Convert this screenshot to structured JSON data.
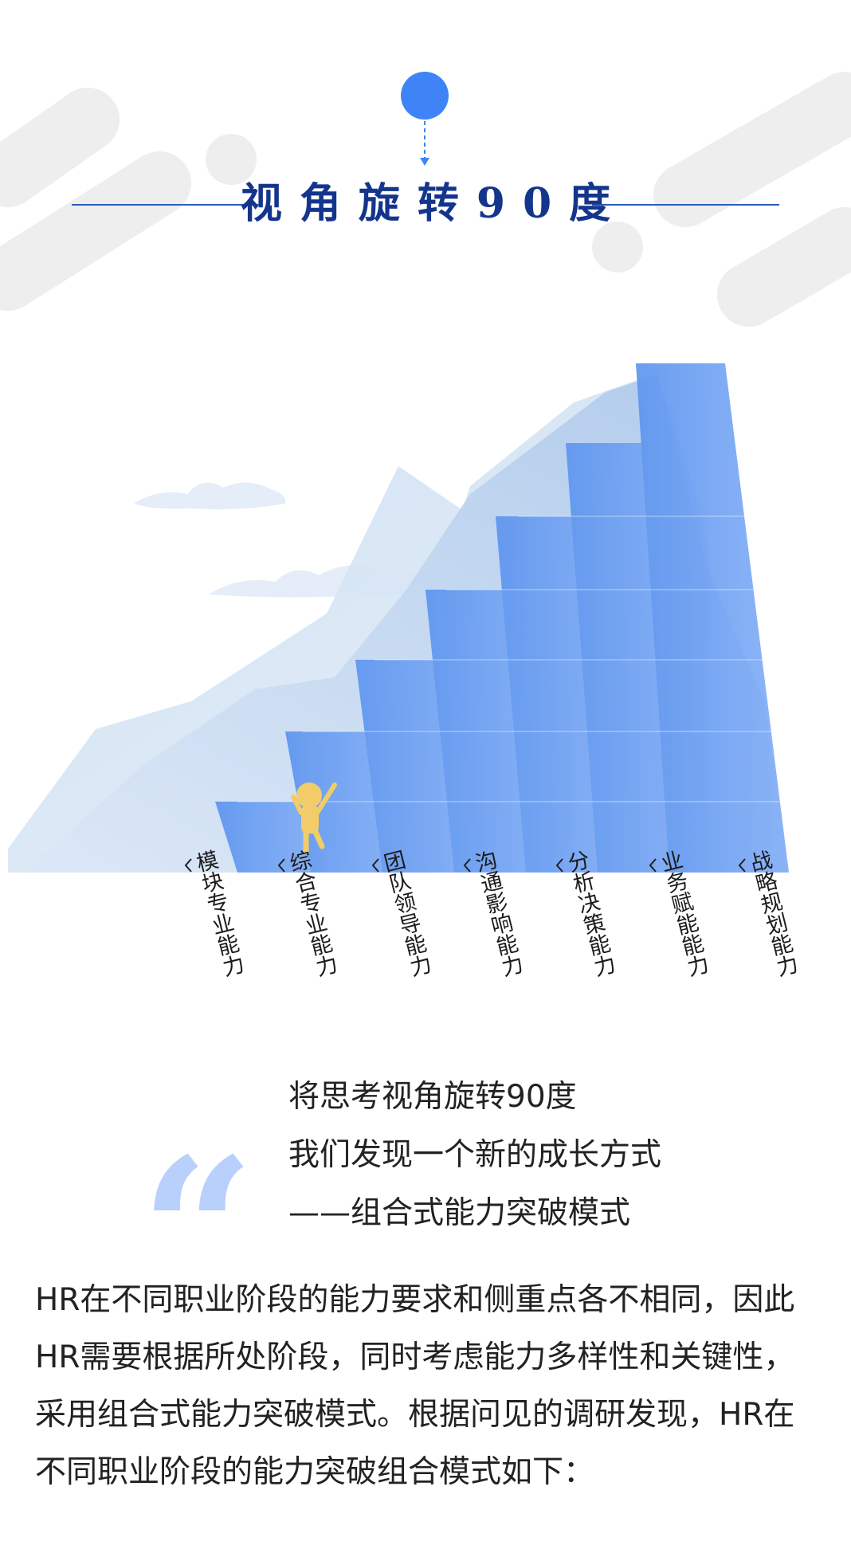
{
  "header": {
    "title": "视角旋转90度"
  },
  "chart": {
    "steps": [
      {
        "label": "模块专业能力",
        "level": 1
      },
      {
        "label": "综合专业能力",
        "level": 2
      },
      {
        "label": "团队领导能力",
        "level": 3
      },
      {
        "label": "沟通影响能力",
        "level": 4
      },
      {
        "label": "分析决策能力",
        "level": 5
      },
      {
        "label": "业务赋能能力",
        "level": 6
      },
      {
        "label": "战略规划能力",
        "level": 7
      }
    ]
  },
  "quote": {
    "mark": "“",
    "lines": [
      "将思考视角旋转90度",
      "我们发现一个新的成长方式",
      "——组合式能力突破模式"
    ]
  },
  "body": {
    "paragraph": "HR在不同职业阶段的能力要求和侧重点各不相同，因此HR需要根据所处阶段，同时考虑能力多样性和关键性，采用组合式能力突破模式。根据问见的调研发现，HR在不同职业阶段的能力突破组合模式如下："
  },
  "colors": {
    "accent": "#3f84f6",
    "title": "#14358c",
    "quote_mark": "#b9cffc"
  }
}
